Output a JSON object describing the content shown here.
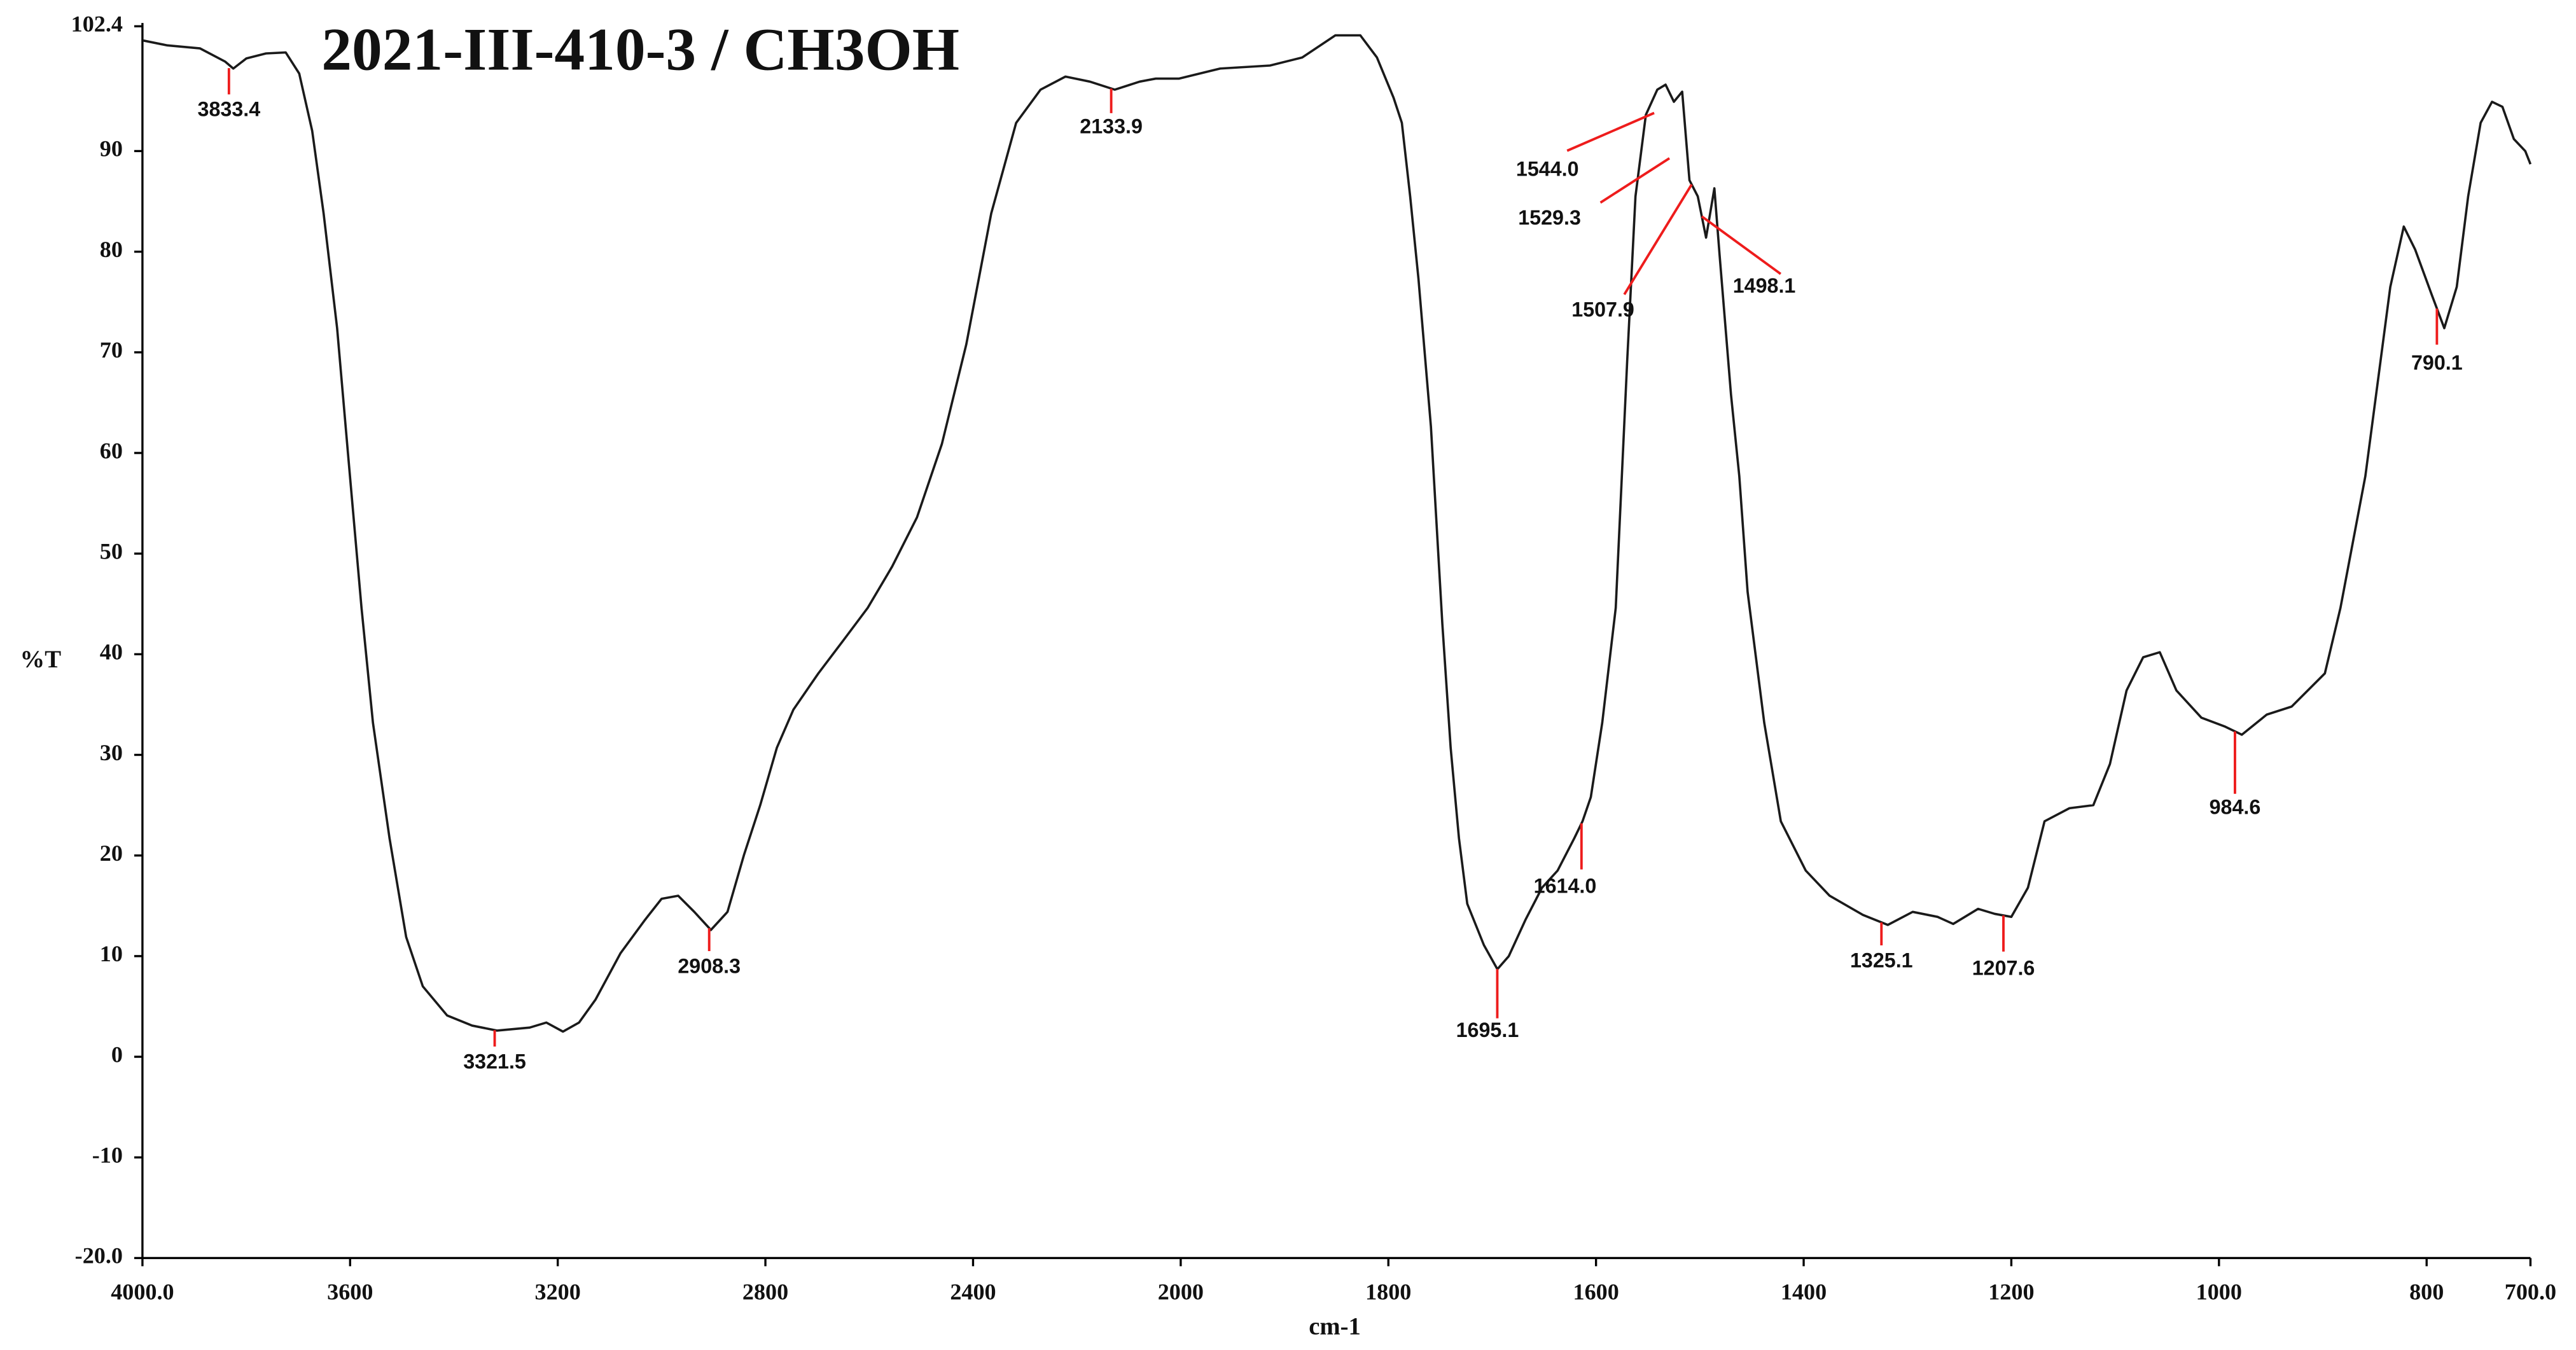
{
  "chart_data": {
    "type": "line",
    "title": "2021-III-410-3 / CH3OH",
    "xlabel": "cm-1",
    "ylabel": "%T",
    "xlim": [
      4000,
      700
    ],
    "x_scale_change_at": 2000,
    "x_scale_expansion": 2,
    "xticks": [
      {
        "value": 4000,
        "label": "4000.0"
      },
      3600,
      3200,
      2800,
      2400,
      2000,
      1800,
      1600,
      1400,
      1200,
      1000,
      800,
      {
        "value": 700,
        "label": "700.0"
      }
    ],
    "ylim": [
      -20,
      102.4
    ],
    "yticks": [
      102.4,
      90,
      80,
      70,
      60,
      50,
      40,
      30,
      20,
      10,
      0,
      -10,
      {
        "value": -20,
        "label": "-20.0"
      }
    ],
    "grid": false,
    "color": "#1a1a1a",
    "x": [
      4000,
      3952,
      3889,
      3841,
      3825,
      3800,
      3762,
      3724,
      3698,
      3673,
      3651,
      3625,
      3603,
      3578,
      3556,
      3524,
      3492,
      3460,
      3413,
      3365,
      3317,
      3254,
      3222,
      3190,
      3159,
      3127,
      3079,
      3032,
      3000,
      2968,
      2937,
      2905,
      2873,
      2841,
      2810,
      2778,
      2746,
      2698,
      2651,
      2603,
      2556,
      2508,
      2460,
      2413,
      2365,
      2317,
      2270,
      2222,
      2175,
      2127,
      2079,
      2048,
      2003,
      1962,
      1914,
      1883,
      1851,
      1827,
      1811,
      1795,
      1787,
      1779,
      1771,
      1759,
      1748,
      1740,
      1732,
      1724,
      1708,
      1695,
      1684,
      1668,
      1652,
      1637,
      1621,
      1613,
      1605,
      1594,
      1581,
      1570,
      1562,
      1552,
      1541,
      1533,
      1525,
      1517,
      1510,
      1502,
      1494,
      1486,
      1481,
      1470,
      1462,
      1454,
      1438,
      1422,
      1398,
      1375,
      1343,
      1319,
      1295,
      1271,
      1256,
      1232,
      1216,
      1200,
      1184,
      1168,
      1144,
      1121,
      1105,
      1089,
      1073,
      1057,
      1041,
      1017,
      994,
      978,
      954,
      930,
      898,
      883,
      859,
      835,
      822,
      811,
      795,
      783,
      771,
      760,
      748,
      737,
      727,
      716,
      705,
      700
    ],
    "values": [
      101.0,
      100.5,
      100.2,
      98.9,
      98.2,
      99.2,
      99.7,
      99.8,
      97.7,
      92.0,
      83.8,
      72.4,
      59.3,
      44.6,
      33.2,
      21.7,
      11.9,
      7.0,
      4.1,
      3.1,
      2.6,
      2.9,
      3.4,
      2.5,
      3.4,
      5.7,
      10.3,
      13.6,
      15.7,
      16.0,
      14.4,
      12.6,
      14.4,
      20.1,
      25.0,
      30.7,
      34.5,
      38.1,
      41.3,
      44.6,
      48.7,
      53.6,
      60.9,
      70.8,
      83.8,
      92.8,
      96.1,
      97.4,
      96.9,
      96.1,
      96.9,
      97.2,
      97.2,
      98.2,
      98.5,
      99.3,
      101.5,
      101.5,
      99.3,
      95.3,
      92.8,
      85.5,
      77.3,
      62.6,
      43.0,
      30.7,
      21.7,
      15.2,
      11.1,
      8.7,
      10.0,
      13.6,
      16.8,
      18.5,
      21.7,
      23.4,
      25.8,
      33.2,
      44.6,
      69.1,
      85.5,
      93.6,
      96.1,
      96.6,
      94.9,
      95.9,
      87.1,
      85.5,
      81.4,
      86.3,
      79.7,
      65.8,
      57.7,
      46.2,
      33.2,
      23.4,
      18.5,
      16.0,
      14.1,
      13.1,
      14.4,
      13.9,
      13.2,
      14.7,
      14.2,
      13.9,
      16.8,
      23.4,
      24.7,
      25.0,
      29.1,
      36.4,
      39.7,
      40.2,
      36.4,
      33.7,
      32.8,
      32.0,
      34.0,
      34.8,
      38.1,
      44.6,
      57.7,
      76.5,
      82.5,
      80.2,
      75.7,
      72.4,
      76.5,
      85.5,
      92.8,
      94.9,
      94.4,
      91.2,
      90.0,
      88.7
    ],
    "peak_color": "#ee1c1c",
    "peaks": [
      3833.4,
      3321.5,
      2908.3,
      2133.9,
      1695.1,
      {
        "value": 1614,
        "label": "1614.0"
      },
      {
        "value": 1544,
        "label": "1544.0"
      },
      1529.3,
      1507.9,
      1498.1,
      1325.1,
      1207.6,
      984.6,
      790.1
    ]
  }
}
